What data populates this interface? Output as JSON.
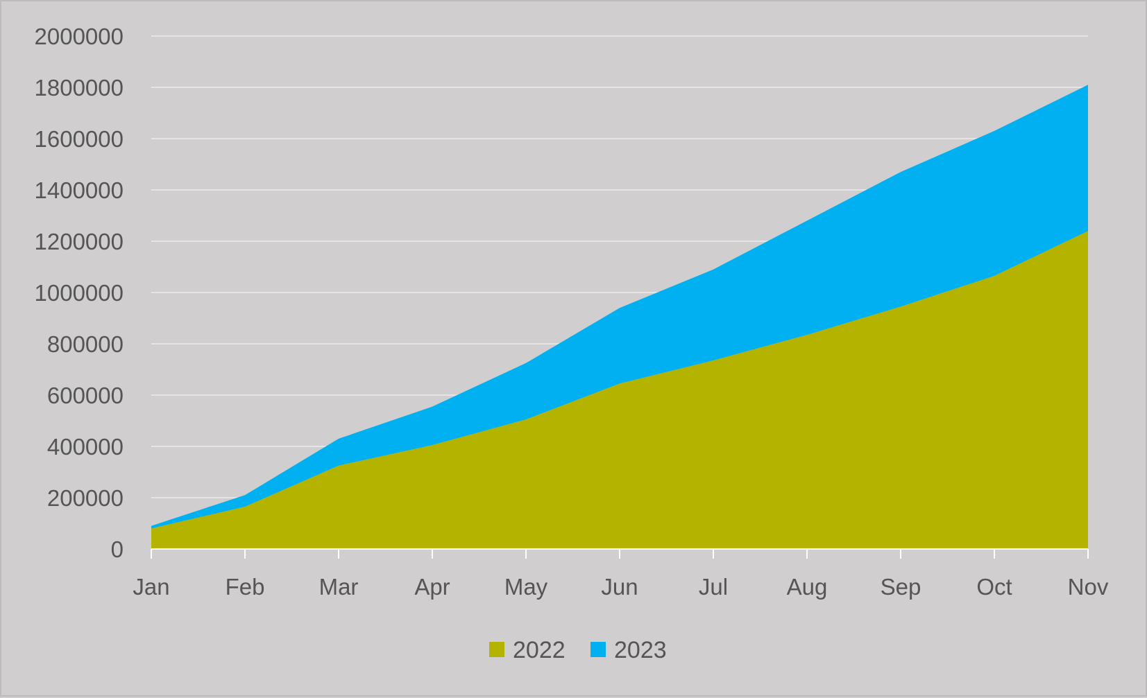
{
  "chart_data": {
    "type": "area",
    "stacked": true,
    "title": "",
    "xlabel": "",
    "ylabel": "",
    "categories": [
      "Jan",
      "Feb",
      "Mar",
      "Apr",
      "May",
      "Jun",
      "Jul",
      "Aug",
      "Sep",
      "Oct",
      "Nov"
    ],
    "ylim": [
      0,
      2000000
    ],
    "yticks": [
      "0",
      "200000",
      "400000",
      "600000",
      "800000",
      "1000000",
      "1200000",
      "1400000",
      "1600000",
      "1800000",
      "2000000"
    ],
    "grid": true,
    "legend_position": "bottom",
    "series": [
      {
        "name": "2022",
        "color": "#b3b300",
        "values": [
          80000,
          165000,
          325000,
          405000,
          505000,
          645000,
          735000,
          835000,
          945000,
          1065000,
          1240000
        ]
      },
      {
        "name": "2023",
        "color": "#00b0f0",
        "values": [
          10000,
          45000,
          105000,
          150000,
          220000,
          295000,
          355000,
          445000,
          525000,
          565000,
          570000
        ]
      }
    ],
    "colors": {
      "background": "#d0cecf",
      "grid": "#e6e4e5",
      "axis": "#ffffff",
      "text": "#555555"
    }
  }
}
